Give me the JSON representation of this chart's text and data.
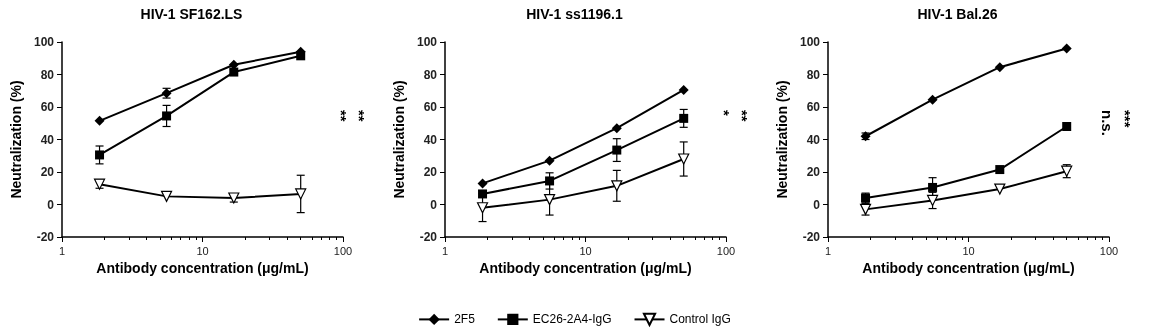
{
  "chart_data": [
    {
      "type": "line",
      "title": "HIV-1 SF162.LS",
      "xlabel": "Antibody concentration (μg/mL)",
      "ylabel": "Neutralization (%)",
      "log": "x",
      "xlim": [
        1,
        100
      ],
      "xticks": [
        1,
        10,
        100
      ],
      "ylim": [
        -20,
        100
      ],
      "yticks": [
        -20,
        0,
        20,
        40,
        60,
        80,
        100
      ],
      "grid": false,
      "legend": false,
      "annotations": [
        "**",
        "**"
      ],
      "series": [
        {
          "color": "#000000",
          "marker": "diamond",
          "x": [
            1.85,
            5.55,
            16.7,
            50
          ],
          "values": [
            51.5,
            68.5,
            86,
            94
          ],
          "errors": [
            null,
            3,
            null,
            null
          ]
        },
        {
          "color": "#000000",
          "marker": "square",
          "x": [
            1.85,
            5.55,
            16.7,
            50
          ],
          "values": [
            30.5,
            54.5,
            81.5,
            91.5
          ],
          "errors": [
            5.5,
            6.5,
            1.5,
            1
          ]
        },
        {
          "color": "#000000",
          "marker": "triangle",
          "x": [
            1.85,
            5.55,
            16.7,
            50
          ],
          "values": [
            12.5,
            5,
            4,
            6.5
          ],
          "errors": [
            2.5,
            null,
            2.5,
            11.5
          ]
        }
      ]
    },
    {
      "type": "line",
      "title": "HIV-1 ss1196.1",
      "xlabel": "Antibody concentration (μg/mL)",
      "ylabel": "Neutralization (%)",
      "log": "x",
      "xlim": [
        1,
        100
      ],
      "xticks": [
        1,
        10,
        100
      ],
      "ylim": [
        -20,
        100
      ],
      "yticks": [
        -20,
        0,
        20,
        40,
        60,
        80,
        100
      ],
      "grid": false,
      "legend": "bottom",
      "annotations": [
        "*",
        "**"
      ],
      "series": [
        {
          "name": "2F5",
          "color": "#000000",
          "marker": "diamond",
          "x": [
            1.85,
            5.55,
            16.7,
            50
          ],
          "values": [
            13,
            27,
            47,
            70.5
          ],
          "errors": [
            null,
            null,
            null,
            null
          ]
        },
        {
          "name": "EC26-2A4-IgG",
          "color": "#000000",
          "marker": "square",
          "x": [
            1.85,
            5.55,
            16.7,
            50
          ],
          "values": [
            6.5,
            14.5,
            33.5,
            53
          ],
          "errors": [
            2,
            5,
            7,
            5.5
          ]
        },
        {
          "name": "Control IgG",
          "color": "#000000",
          "marker": "triangle",
          "x": [
            1.85,
            5.55,
            16.7,
            50
          ],
          "values": [
            -2,
            3,
            11.5,
            28
          ],
          "errors": [
            8.5,
            9.5,
            9.5,
            10.5
          ]
        }
      ]
    },
    {
      "type": "line",
      "title": "HIV-1 Bal.26",
      "xlabel": "Antibody concentration (μg/mL)",
      "ylabel": "Neutralization (%)",
      "log": "x",
      "xlim": [
        1,
        100
      ],
      "xticks": [
        1,
        10,
        100
      ],
      "ylim": [
        -20,
        100
      ],
      "yticks": [
        -20,
        0,
        20,
        40,
        60,
        80,
        100
      ],
      "grid": false,
      "legend": false,
      "annotations": [
        "n.s.",
        "***"
      ],
      "series": [
        {
          "color": "#000000",
          "marker": "diamond",
          "x": [
            1.85,
            5.55,
            16.7,
            50
          ],
          "values": [
            42,
            64.5,
            84.5,
            96
          ],
          "errors": [
            2,
            null,
            null,
            null
          ]
        },
        {
          "color": "#000000",
          "marker": "square",
          "x": [
            1.85,
            5.55,
            16.7,
            50
          ],
          "values": [
            4,
            10.5,
            21.5,
            48
          ],
          "errors": [
            3,
            6,
            null,
            null
          ]
        },
        {
          "color": "#000000",
          "marker": "triangle",
          "x": [
            1.85,
            5.55,
            16.7,
            50
          ],
          "values": [
            -3,
            2.5,
            9.5,
            20.5
          ],
          "errors": [
            3.5,
            5,
            null,
            4
          ]
        }
      ]
    }
  ]
}
